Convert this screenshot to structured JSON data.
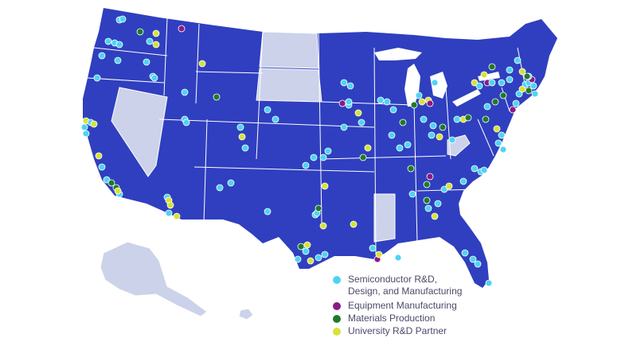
{
  "colors": {
    "map_fill": "#2f3fbf",
    "excluded_state_fill": "#cbd2ea",
    "border": "#ffffff"
  },
  "legend": [
    {
      "key": "semiconductor",
      "label_line1": "Semiconductor R&D,",
      "label_line2": "Design, and Manufacturing",
      "color": "#4fd3f4"
    },
    {
      "key": "equipment",
      "label_line1": "Equipment Manufacturing",
      "label_line2": "",
      "color": "#8b1a86"
    },
    {
      "key": "materials",
      "label_line1": "Materials Production",
      "label_line2": "",
      "color": "#1f7a2a"
    },
    {
      "key": "university",
      "label_line1": "University R&D Partner",
      "label_line2": "",
      "color": "#d7e23a"
    }
  ],
  "excluded_states": [
    "Nevada",
    "North Dakota",
    "South Dakota",
    "Mississippi",
    "West Virginia",
    "Alaska",
    "Hawaii"
  ]
}
